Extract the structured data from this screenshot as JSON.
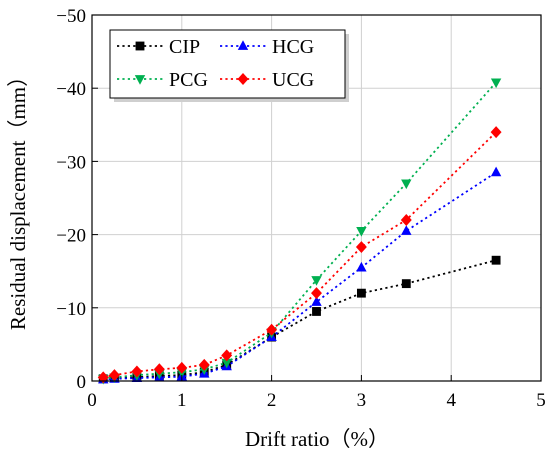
{
  "chart_data": {
    "type": "line",
    "xlabel": "Drift ratio（%）",
    "ylabel": "Residual displacement（mm）",
    "xlim": [
      0,
      5
    ],
    "ylim": [
      0,
      -50
    ],
    "x_ticks": [
      "0",
      "1",
      "2",
      "3",
      "4",
      "5"
    ],
    "y_ticks": [
      "0",
      "−10",
      "−20",
      "−30",
      "−40",
      "−50"
    ],
    "grid": true,
    "legend_position": "top-left",
    "series": [
      {
        "name": "CIP",
        "color": "#000000",
        "marker": "square",
        "x": [
          0.125,
          0.25,
          0.5,
          0.75,
          1.0,
          1.25,
          1.5,
          2.0,
          2.5,
          3.0,
          3.5,
          4.5
        ],
        "y": [
          -0.3,
          -0.4,
          -0.5,
          -0.7,
          -0.8,
          -1.2,
          -2.2,
          -6.0,
          -9.5,
          -12.0,
          -13.3,
          -16.5
        ]
      },
      {
        "name": "HCG",
        "color": "#0000ff",
        "marker": "triangle-up",
        "x": [
          0.125,
          0.25,
          0.5,
          0.75,
          1.0,
          1.25,
          1.5,
          2.0,
          2.5,
          3.0,
          3.5,
          4.5
        ],
        "y": [
          -0.2,
          -0.3,
          -0.4,
          -0.5,
          -0.6,
          -1.0,
          -2.0,
          -6.0,
          -10.8,
          -15.5,
          -20.5,
          -28.5
        ]
      },
      {
        "name": "PCG",
        "color": "#00b050",
        "marker": "triangle-down",
        "x": [
          0.125,
          0.25,
          0.5,
          0.75,
          1.0,
          1.25,
          1.5,
          2.0,
          2.5,
          3.0,
          3.5,
          4.5
        ],
        "y": [
          -0.3,
          -0.5,
          -0.8,
          -1.0,
          -1.2,
          -1.6,
          -2.5,
          -6.6,
          -13.8,
          -20.5,
          -27.0,
          -40.8
        ]
      },
      {
        "name": "UCG",
        "color": "#ff0000",
        "marker": "diamond",
        "x": [
          0.125,
          0.25,
          0.5,
          0.75,
          1.0,
          1.25,
          1.5,
          2.0,
          2.5,
          3.0,
          3.5,
          4.5
        ],
        "y": [
          -0.5,
          -0.8,
          -1.3,
          -1.6,
          -1.8,
          -2.2,
          -3.5,
          -7.0,
          -12.0,
          -18.3,
          -22.0,
          -34.0
        ]
      }
    ]
  }
}
